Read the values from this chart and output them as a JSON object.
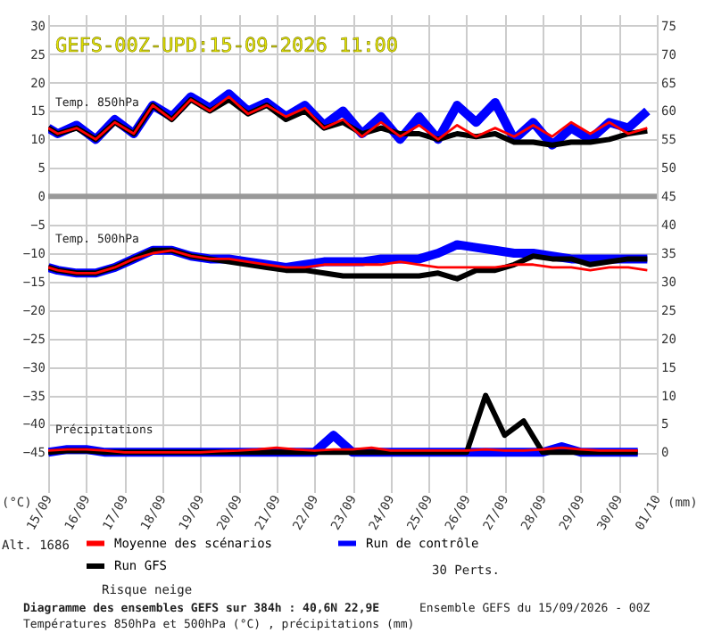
{
  "chart_data": {
    "type": "line",
    "title": "GEFS-00Z-UPD:15-09-2026 11:00",
    "ylabel": "(°C)",
    "y2label": "(mm)",
    "x": [
      "2026-09-15T00:00",
      "2026-09-15T06:00",
      "2026-09-15T18:00",
      "2026-09-16T06:00",
      "2026-09-16T18:00",
      "2026-09-17T06:00",
      "2026-09-17T18:00",
      "2026-09-18T06:00",
      "2026-09-18T18:00",
      "2026-09-19T06:00",
      "2026-09-19T18:00",
      "2026-09-20T06:00",
      "2026-09-20T18:00",
      "2026-09-21T06:00",
      "2026-09-21T18:00",
      "2026-09-22T06:00",
      "2026-09-22T18:00",
      "2026-09-23T06:00",
      "2026-09-23T18:00",
      "2026-09-24T06:00",
      "2026-09-24T18:00",
      "2026-09-25T06:00",
      "2026-09-25T18:00",
      "2026-09-26T06:00",
      "2026-09-26T18:00",
      "2026-09-27T06:00",
      "2026-09-27T18:00",
      "2026-09-28T06:00",
      "2026-09-28T18:00",
      "2026-09-29T06:00",
      "2026-09-29T18:00",
      "2026-09-30T06:00",
      "2026-09-30T18:00"
    ],
    "series": [
      {
        "name": "Moyenne des scénarios",
        "color": "#ff0000",
        "values": [
          12,
          11,
          12,
          10,
          13,
          11,
          16,
          13.5,
          17,
          15,
          17.5,
          14.5,
          16,
          14,
          15.5,
          12,
          13.5,
          10.5,
          13,
          10.5,
          12.5,
          10,
          12.5,
          10.5,
          12,
          10.5,
          12.5,
          10.5,
          13,
          11,
          13,
          11,
          12
        ]
      },
      {
        "name": "Run de contrôle",
        "color": "#0000ff",
        "values": [
          12,
          11,
          12.5,
          10,
          13.5,
          11,
          16,
          14,
          17.5,
          15.5,
          18,
          15,
          16.5,
          14,
          16,
          12.5,
          15,
          11,
          14,
          10,
          14,
          10,
          16,
          13,
          16.5,
          10,
          13,
          9,
          12,
          10,
          13,
          12,
          15
        ]
      },
      {
        "name": "Run GFS",
        "color": "#000000",
        "values": [
          12,
          11,
          12,
          10,
          13,
          11,
          16,
          13.5,
          17,
          15,
          17,
          14.5,
          16,
          13.5,
          15,
          12,
          13,
          11,
          12,
          11,
          11,
          10,
          11,
          10.5,
          11,
          9.5,
          9.5,
          9,
          9.5,
          9.5,
          10,
          11,
          11.5
        ]
      },
      {
        "color": "#ff0000",
        "values": [
          -12.5,
          -13,
          -13.5,
          -13.5,
          -12.5,
          -11,
          -10,
          -9.5,
          -10.5,
          -11,
          -11,
          -11.5,
          -12,
          -12.5,
          -12.5,
          -12,
          -12,
          -12,
          -12,
          -11.5,
          -12,
          -12.5,
          -12.5,
          -12.5,
          -12.5,
          -12,
          -12,
          -12.5,
          -12.5,
          -13,
          -12.5,
          -12.5,
          -13
        ]
      },
      {
        "color": "#0000ff",
        "values": [
          -12.5,
          -13,
          -13.5,
          -13.5,
          -12.5,
          -11,
          -9.5,
          -9.5,
          -10.5,
          -11,
          -11,
          -11.5,
          -12,
          -12.5,
          -12,
          -11.5,
          -11.5,
          -11.5,
          -11,
          -11,
          -11,
          -10,
          -8.5,
          -9,
          -9.5,
          -10,
          -10,
          -10.5,
          -11,
          -11,
          -11,
          -11,
          -11
        ]
      },
      {
        "color": "#000000",
        "values": [
          -12.5,
          -13,
          -13.5,
          -13.5,
          -12.5,
          -11,
          -9.5,
          -9.5,
          -10.5,
          -11,
          -11.5,
          -12,
          -12.5,
          -13,
          -13,
          -13.5,
          -14,
          -14,
          -14,
          -14,
          -14,
          -13.5,
          -14.5,
          -13,
          -13,
          -12,
          -10.5,
          -11,
          -11,
          -12,
          -11.5,
          -11,
          -11
        ]
      },
      {
        "color": "#ff0000",
        "axis": "y2",
        "x": [
          "2026-09-15T00:00",
          "2026-09-15T12:00",
          "2026-09-16T00:00",
          "2026-09-16T12:00",
          "2026-09-17T00:00",
          "2026-09-17T12:00",
          "2026-09-18T00:00",
          "2026-09-18T12:00",
          "2026-09-19T00:00",
          "2026-09-19T12:00",
          "2026-09-20T00:00",
          "2026-09-20T12:00",
          "2026-09-21T00:00",
          "2026-09-21T12:00",
          "2026-09-22T00:00",
          "2026-09-22T12:00",
          "2026-09-23T00:00",
          "2026-09-23T12:00",
          "2026-09-24T00:00",
          "2026-09-24T12:00",
          "2026-09-25T00:00",
          "2026-09-25T12:00",
          "2026-09-26T00:00",
          "2026-09-26T12:00",
          "2026-09-27T00:00",
          "2026-09-27T12:00",
          "2026-09-28T00:00",
          "2026-09-28T12:00",
          "2026-09-29T00:00",
          "2026-09-29T12:00",
          "2026-09-30T00:00",
          "2026-09-30T12:00"
        ],
        "values": [
          0.3,
          0.5,
          0.5,
          0.3,
          0,
          0,
          0,
          0,
          0,
          0.2,
          0.3,
          0.5,
          0.8,
          0.5,
          0.3,
          0.5,
          0.5,
          0.8,
          0.3,
          0.3,
          0.3,
          0.3,
          0.3,
          0.5,
          0.3,
          0.3,
          0.5,
          0.8,
          0.5,
          0.3,
          0.3,
          0.3
        ]
      },
      {
        "color": "#0000ff",
        "axis": "y2",
        "x": [
          "2026-09-15T00:00",
          "2026-09-15T12:00",
          "2026-09-16T00:00",
          "2026-09-16T12:00",
          "2026-09-17T00:00",
          "2026-09-17T12:00",
          "2026-09-18T00:00",
          "2026-09-18T12:00",
          "2026-09-19T00:00",
          "2026-09-19T12:00",
          "2026-09-20T00:00",
          "2026-09-20T12:00",
          "2026-09-21T00:00",
          "2026-09-21T12:00",
          "2026-09-22T00:00",
          "2026-09-22T12:00",
          "2026-09-23T00:00",
          "2026-09-23T12:00",
          "2026-09-24T00:00",
          "2026-09-24T12:00",
          "2026-09-25T00:00",
          "2026-09-25T12:00",
          "2026-09-26T00:00",
          "2026-09-26T12:00",
          "2026-09-27T00:00",
          "2026-09-27T12:00",
          "2026-09-28T00:00",
          "2026-09-28T12:00",
          "2026-09-29T00:00",
          "2026-09-29T12:00",
          "2026-09-30T00:00",
          "2026-09-30T12:00"
        ],
        "values": [
          0,
          0.5,
          0.5,
          0,
          0,
          0,
          0,
          0,
          0,
          0,
          0,
          0,
          0,
          0,
          0,
          3,
          0,
          0,
          0,
          0,
          0,
          0,
          0,
          0,
          0,
          0,
          0,
          1,
          0,
          0,
          0,
          0
        ]
      },
      {
        "color": "#000000",
        "axis": "y2",
        "x": [
          "2026-09-15T00:00",
          "2026-09-15T12:00",
          "2026-09-16T00:00",
          "2026-09-16T12:00",
          "2026-09-17T00:00",
          "2026-09-17T12:00",
          "2026-09-18T00:00",
          "2026-09-18T12:00",
          "2026-09-19T00:00",
          "2026-09-19T12:00",
          "2026-09-20T00:00",
          "2026-09-20T12:00",
          "2026-09-21T00:00",
          "2026-09-21T12:00",
          "2026-09-22T00:00",
          "2026-09-22T12:00",
          "2026-09-23T00:00",
          "2026-09-23T12:00",
          "2026-09-24T00:00",
          "2026-09-24T12:00",
          "2026-09-25T00:00",
          "2026-09-25T12:00",
          "2026-09-26T00:00",
          "2026-09-26T12:00",
          "2026-09-27T00:00",
          "2026-09-27T12:00",
          "2026-09-28T00:00",
          "2026-09-28T12:00",
          "2026-09-29T00:00",
          "2026-09-29T12:00",
          "2026-09-30T00:00",
          "2026-09-30T12:00"
        ],
        "values": [
          0,
          0.3,
          0.3,
          0,
          0,
          0,
          0,
          0,
          0,
          0,
          0,
          0,
          0,
          0,
          0,
          0,
          0,
          0,
          0,
          0,
          0,
          0,
          0,
          10,
          3,
          5.5,
          0,
          0,
          0,
          0,
          0,
          0
        ]
      }
    ],
    "xlim": [
      "2026-09-15T00:00",
      "2026-10-01T00:00"
    ],
    "xticks": [
      {
        "value": "2026-09-15",
        "label": "15/09"
      },
      {
        "value": "2026-09-16",
        "label": "16/09"
      },
      {
        "value": "2026-09-17",
        "label": "17/09"
      },
      {
        "value": "2026-09-18",
        "label": "18/09"
      },
      {
        "value": "2026-09-19",
        "label": "19/09"
      },
      {
        "value": "2026-09-20",
        "label": "20/09"
      },
      {
        "value": "2026-09-21",
        "label": "21/09"
      },
      {
        "value": "2026-09-22",
        "label": "22/09"
      },
      {
        "value": "2026-09-23",
        "label": "23/09"
      },
      {
        "value": "2026-09-24",
        "label": "24/09"
      },
      {
        "value": "2026-09-25",
        "label": "25/09"
      },
      {
        "value": "2026-09-26",
        "label": "26/09"
      },
      {
        "value": "2026-09-27",
        "label": "27/09"
      },
      {
        "value": "2026-09-28",
        "label": "28/09"
      },
      {
        "value": "2026-09-29",
        "label": "29/09"
      },
      {
        "value": "2026-09-30",
        "label": "30/09"
      },
      {
        "value": "2026-10-01",
        "label": "01/10"
      }
    ],
    "ylim": [
      -52,
      32
    ],
    "yticks": [
      -45,
      -40,
      -35,
      -30,
      -25,
      -20,
      -15,
      -10,
      -5,
      0,
      5,
      10,
      15,
      20,
      25,
      30
    ],
    "y2lim": [
      -7,
      77
    ],
    "y2ticks": [
      0,
      5,
      10,
      15,
      20,
      25,
      30,
      35,
      40,
      45,
      50,
      55,
      60,
      65,
      70,
      75
    ],
    "ref_lines": [
      {
        "axis": "y",
        "value": 0,
        "color": "#999999"
      }
    ],
    "grid": true,
    "legend": "bottom left",
    "line_style": "solid",
    "marker": "none",
    "annotations": [
      "Temp. 850hPa",
      "Temp. 500hPa",
      "Précipitations",
      "Alt. 1686",
      "Risque neige",
      "30 Perts.",
      "Diagramme des ensembles GEFS sur 384h : 40,6N 22,9E",
      "Températures 850hPa et 500hPa (°C) , précipitations (mm)",
      "Ensemble GEFS du 15/09/2026 - 00Z"
    ]
  }
}
